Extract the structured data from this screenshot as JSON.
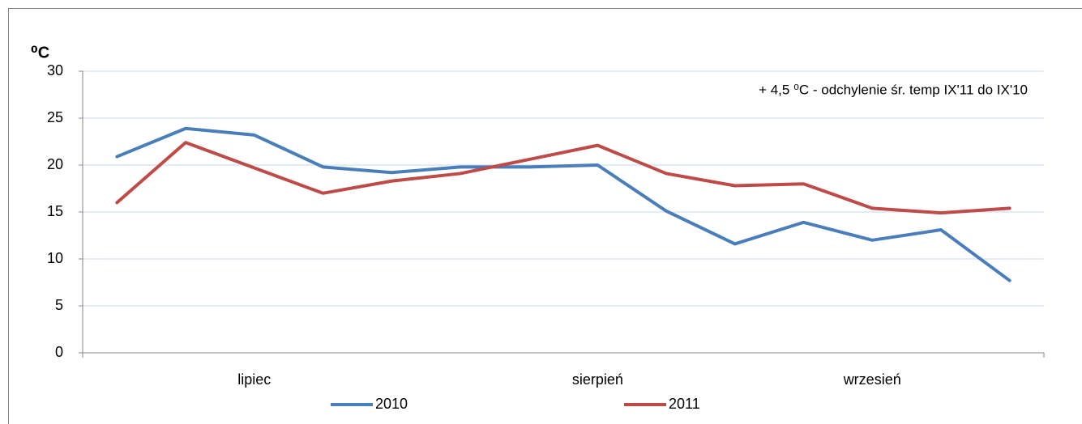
{
  "chart_data": {
    "type": "line",
    "y_label": "⁰C",
    "annotation": "+ 4,5 ⁰C - odchylenie śr. temp IX'11 do IX'10",
    "categories": [
      null,
      null,
      "lipiec",
      null,
      null,
      null,
      null,
      "sierpień",
      null,
      null,
      null,
      "wrzesień",
      null,
      null
    ],
    "series": [
      {
        "name": "2010",
        "color": "#4a7ebb",
        "values": [
          20.9,
          23.9,
          23.2,
          19.8,
          19.2,
          19.8,
          19.8,
          20.0,
          15.1,
          11.6,
          13.9,
          12.0,
          13.1,
          7.7
        ]
      },
      {
        "name": "2011",
        "color": "#be4b48",
        "values": [
          16.0,
          22.4,
          19.7,
          17.0,
          18.3,
          19.1,
          20.6,
          22.1,
          19.1,
          17.8,
          18.0,
          15.4,
          14.9,
          15.4
        ]
      }
    ],
    "ylim": [
      0,
      30
    ],
    "yticks": [
      0,
      5,
      10,
      15,
      20,
      25,
      30
    ],
    "grid": true
  }
}
